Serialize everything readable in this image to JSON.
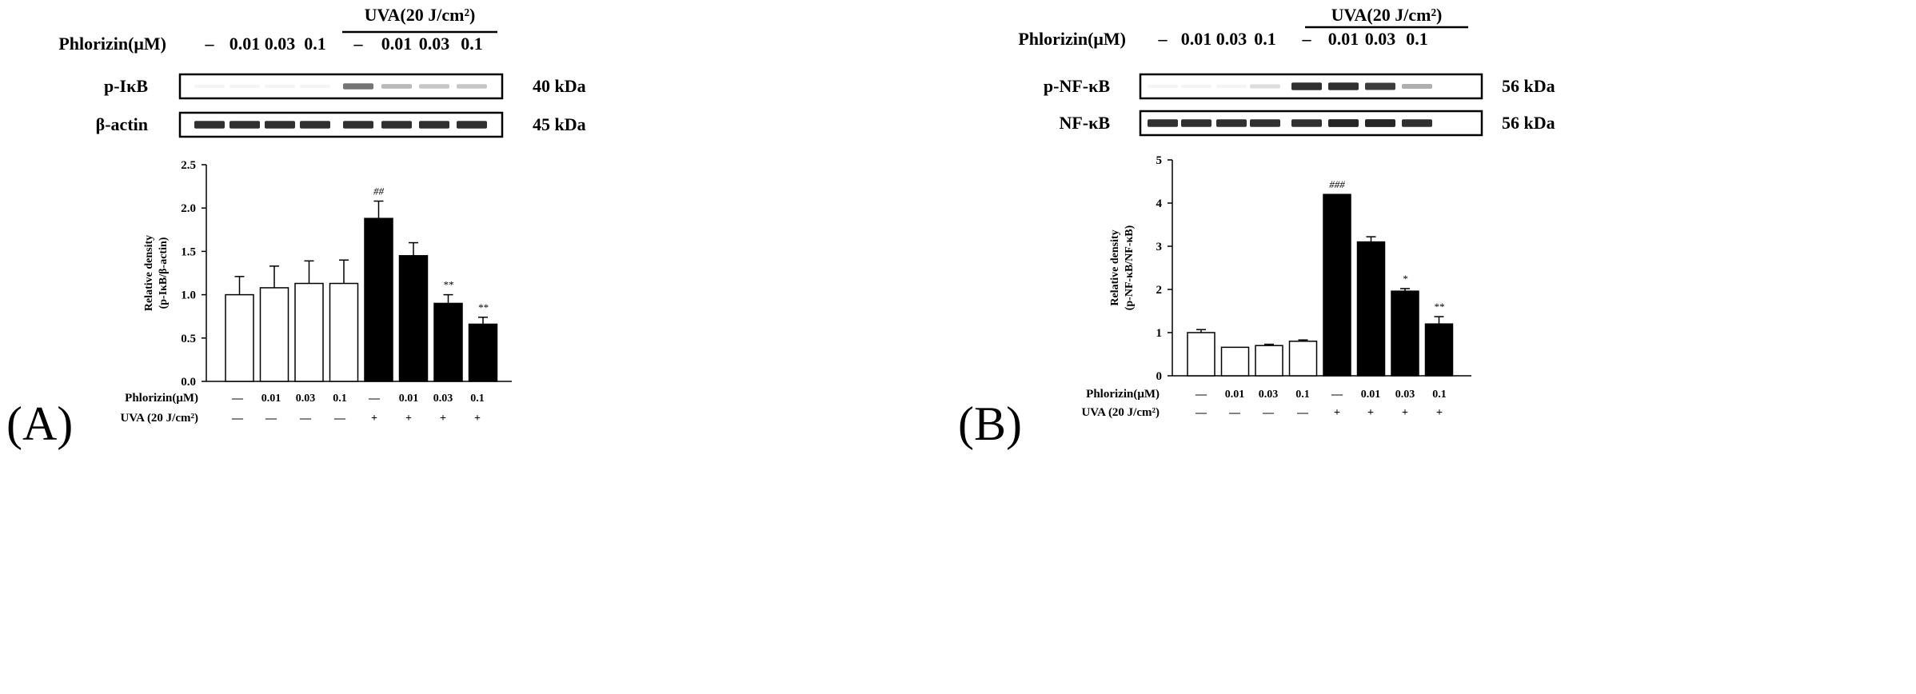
{
  "panels": [
    {
      "id": "A",
      "panel_label": "(A)",
      "blot": {
        "uva_header": "UVA(20 J/cm²)",
        "treatment_label": "Phlorizin(μM)",
        "lane_labels": [
          "–",
          "0.01",
          "0.03",
          "0.1",
          "–",
          "0.01",
          "0.03",
          "0.1"
        ],
        "rows": [
          {
            "name": "p-IκB",
            "size": "40 kDa",
            "intensity": [
              0.05,
              0.05,
              0.05,
              0.05,
              0.6,
              0.3,
              0.25,
              0.25
            ]
          },
          {
            "name": "β-actin",
            "size": "45 kDa",
            "intensity": [
              0.9,
              0.9,
              0.9,
              0.9,
              0.9,
              0.9,
              0.9,
              0.9
            ]
          }
        ]
      },
      "table": {
        "row1_label": "Phlorizin(μM)",
        "row1_values": [
          "—",
          "0.01",
          "0.03",
          "0.1",
          "—",
          "0.01",
          "0.03",
          "0.1"
        ],
        "row2_label": "UVA (20 J/cm²)",
        "row2_values": [
          "—",
          "—",
          "—",
          "—",
          "+",
          "+",
          "+",
          "+"
        ]
      }
    },
    {
      "id": "B",
      "panel_label": "(B)",
      "blot": {
        "uva_header": "UVA(20 J/cm²)",
        "treatment_label": "Phlorizin(μM)",
        "lane_labels": [
          "–",
          "0.01",
          "0.03",
          "0.1",
          "–",
          "0.01",
          "0.03",
          "0.1"
        ],
        "rows": [
          {
            "name": "p-NF-κB",
            "size": "56 kDa",
            "intensity": [
              0.05,
              0.05,
              0.05,
              0.15,
              0.9,
              0.9,
              0.85,
              0.35
            ]
          },
          {
            "name": "NF-κB",
            "size": "56 kDa",
            "intensity": [
              0.9,
              0.9,
              0.9,
              0.9,
              0.9,
              0.95,
              0.95,
              0.9
            ]
          }
        ]
      },
      "table": {
        "row1_label": "Phlorizin(μM)",
        "row1_values": [
          "—",
          "0.01",
          "0.03",
          "0.1",
          "—",
          "0.01",
          "0.03",
          "0.1"
        ],
        "row2_label": "UVA (20 J/cm²)",
        "row2_values": [
          "—",
          "—",
          "—",
          "—",
          "+",
          "+",
          "+",
          "+"
        ]
      }
    }
  ],
  "chart_data": [
    {
      "type": "bar",
      "ylabel": "Relative density\n(p-IκB/β-actin)",
      "ylim": [
        0,
        2.5
      ],
      "yticks": [
        "0.0",
        "0.5",
        "1.0",
        "1.5",
        "2.0",
        "2.5"
      ],
      "categories": [
        "—",
        "0.01",
        "0.03",
        "0.1",
        "—",
        "0.01",
        "0.03",
        "0.1"
      ],
      "values": [
        1.0,
        1.08,
        1.13,
        1.13,
        1.88,
        1.45,
        0.9,
        0.66
      ],
      "errors": [
        0.21,
        0.25,
        0.26,
        0.27,
        0.2,
        0.15,
        0.1,
        0.08
      ],
      "fill": [
        "white",
        "white",
        "white",
        "white",
        "black",
        "black",
        "black",
        "black"
      ],
      "annotations": [
        "",
        "",
        "",
        "",
        "##",
        "",
        "**",
        "**"
      ]
    },
    {
      "type": "bar",
      "ylabel": "Relative density\n(p-NF-κB/NF-κB)",
      "ylim": [
        0,
        5
      ],
      "yticks": [
        "0",
        "1",
        "2",
        "3",
        "4",
        "5"
      ],
      "categories": [
        "—",
        "0.01",
        "0.03",
        "0.1",
        "—",
        "0.01",
        "0.03",
        "0.1"
      ],
      "values": [
        1.0,
        0.66,
        0.7,
        0.8,
        4.2,
        3.1,
        1.96,
        1.2
      ],
      "errors": [
        0.07,
        0.0,
        0.03,
        0.03,
        0.0,
        0.12,
        0.06,
        0.17
      ],
      "fill": [
        "white",
        "white",
        "white",
        "white",
        "black",
        "black",
        "black",
        "black"
      ],
      "annotations": [
        "",
        "",
        "",
        "",
        "###",
        "",
        "*",
        "**"
      ]
    }
  ]
}
